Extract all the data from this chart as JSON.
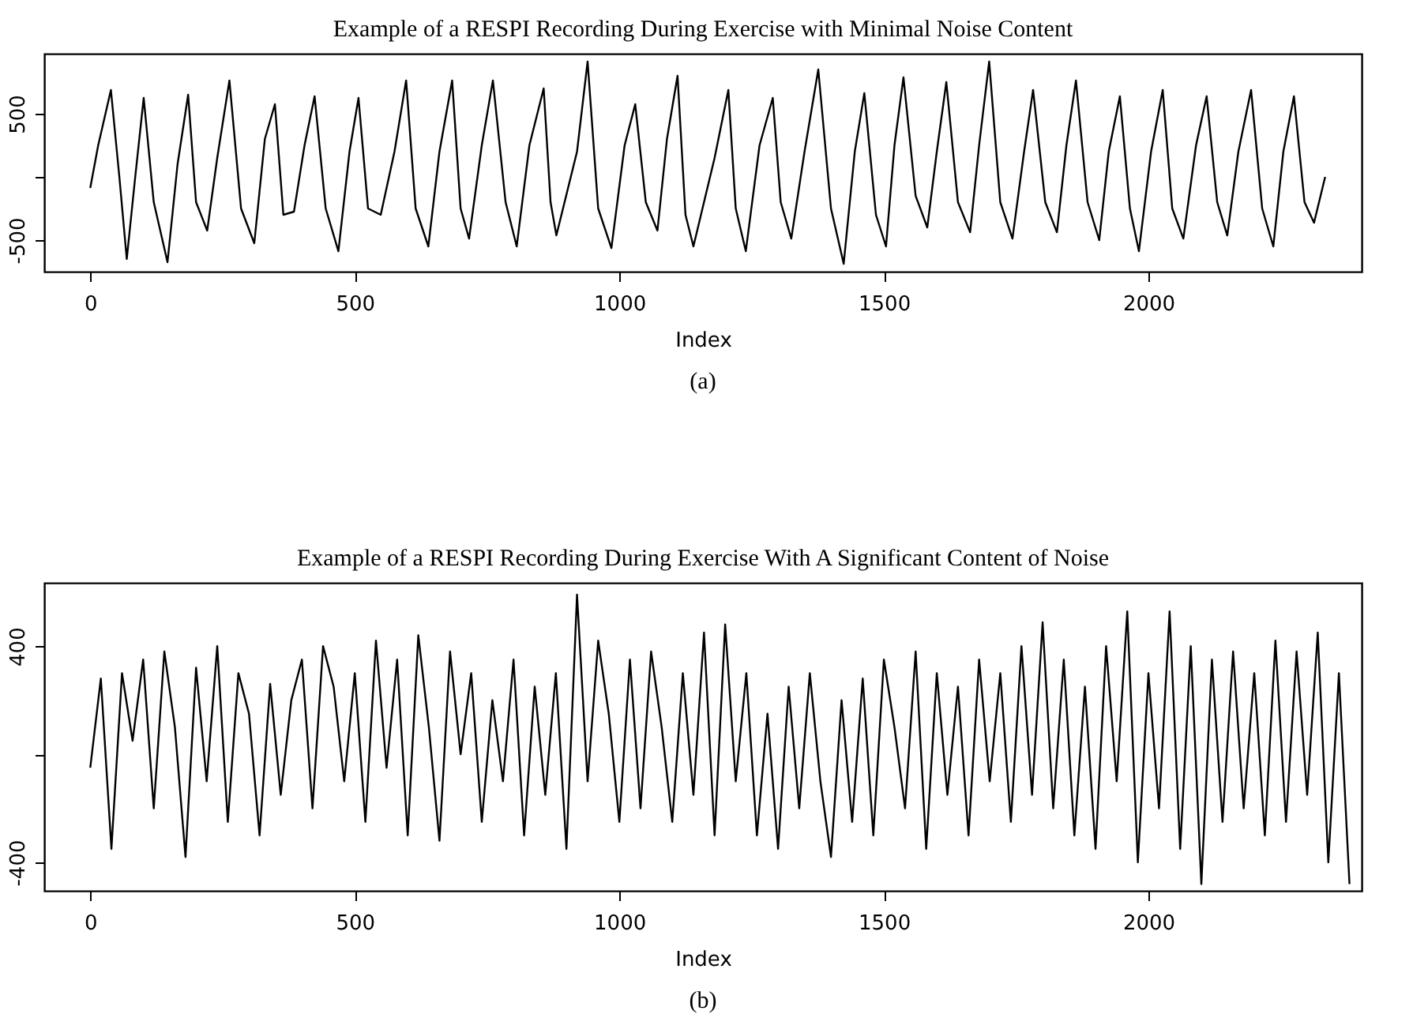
{
  "chart_data": [
    {
      "type": "line",
      "title": "Example of a RESPI Recording During Exercise with Minimal Noise Content",
      "xlabel": "Index",
      "annotations": [
        "(a)"
      ],
      "x": [
        0,
        15,
        39,
        55,
        69,
        85,
        101,
        120,
        146,
        165,
        185,
        200,
        221,
        240,
        263,
        285,
        310,
        330,
        349,
        365,
        385,
        405,
        424,
        445,
        469,
        490,
        507,
        525,
        549,
        575,
        597,
        615,
        639,
        660,
        684,
        700,
        716,
        740,
        761,
        785,
        806,
        830,
        857,
        870,
        881,
        920,
        940,
        960,
        985,
        1010,
        1030,
        1050,
        1072,
        1090,
        1110,
        1125,
        1140,
        1180,
        1206,
        1220,
        1239,
        1265,
        1290,
        1305,
        1325,
        1350,
        1376,
        1400,
        1424,
        1445,
        1463,
        1485,
        1504,
        1520,
        1537,
        1560,
        1582,
        1600,
        1618,
        1640,
        1663,
        1680,
        1699,
        1720,
        1743,
        1765,
        1782,
        1805,
        1827,
        1845,
        1863,
        1885,
        1907,
        1925,
        1946,
        1965,
        1982,
        2005,
        2027,
        2045,
        2066,
        2090,
        2110,
        2130,
        2149,
        2170,
        2194,
        2215,
        2236,
        2255,
        2275,
        2295,
        2313,
        2334
      ],
      "series": [
        {
          "color": "#000000",
          "values": [
            -88,
            250,
            688,
            0,
            -650,
            0,
            625,
            -200,
            -675,
            100,
            650,
            -200,
            -425,
            150,
            763,
            -250,
            -525,
            300,
            575,
            -300,
            -275,
            250,
            638,
            -250,
            -588,
            200,
            625,
            -250,
            -300,
            200,
            763,
            -250,
            -550,
            200,
            763,
            -250,
            -488,
            250,
            763,
            -200,
            -550,
            250,
            700,
            -200,
            -463,
            200,
            913,
            -250,
            -563,
            250,
            575,
            -200,
            -425,
            300,
            800,
            -300,
            -550,
            150,
            688,
            -250,
            -588,
            250,
            625,
            -200,
            -488,
            200,
            850,
            -250,
            -688,
            200,
            663,
            -300,
            -550,
            250,
            788,
            -150,
            -400,
            200,
            750,
            -200,
            -438,
            250,
            913,
            -200,
            -488,
            200,
            688,
            -200,
            -438,
            250,
            763,
            -200,
            -500,
            200,
            638,
            -250,
            -588,
            200,
            688,
            -250,
            -488,
            250,
            638,
            -200,
            -463,
            200,
            688,
            -250,
            -550,
            200,
            638,
            -200,
            -363,
            0
          ]
        }
      ],
      "xlim": [
        -87,
        2403
      ],
      "xticks": [
        0,
        500,
        1000,
        1500,
        2000
      ],
      "ylim": [
        -750,
        975
      ],
      "yticks": [
        -500,
        {
          "value": 0,
          "label": null
        },
        500
      ]
    },
    {
      "type": "line",
      "title": "Example of a RESPI Recording During Exercise With A Significant Content of Noise",
      "xlabel": "Index",
      "annotations": [
        "(b)"
      ],
      "x": [
        0,
        20,
        40,
        60,
        80,
        100,
        120,
        140,
        160,
        180,
        200,
        220,
        240,
        260,
        280,
        300,
        320,
        340,
        360,
        380,
        400,
        420,
        440,
        460,
        480,
        500,
        520,
        540,
        560,
        580,
        600,
        620,
        640,
        660,
        680,
        700,
        720,
        740,
        760,
        780,
        800,
        820,
        840,
        860,
        880,
        900,
        920,
        940,
        960,
        980,
        1000,
        1020,
        1040,
        1060,
        1080,
        1100,
        1120,
        1140,
        1160,
        1180,
        1200,
        1220,
        1240,
        1260,
        1280,
        1300,
        1320,
        1340,
        1360,
        1380,
        1400,
        1420,
        1440,
        1460,
        1480,
        1500,
        1520,
        1540,
        1560,
        1580,
        1600,
        1620,
        1640,
        1660,
        1680,
        1700,
        1720,
        1740,
        1760,
        1780,
        1800,
        1820,
        1840,
        1860,
        1880,
        1900,
        1920,
        1940,
        1960,
        1980,
        2000,
        2020,
        2040,
        2060,
        2080,
        2100,
        2120,
        2140,
        2160,
        2180,
        2200,
        2220,
        2240,
        2260,
        2280,
        2300,
        2320,
        2340,
        2360,
        2380
      ],
      "series": [
        {
          "color": "#000000",
          "values": [
            -50,
            280,
            -350,
            300,
            50,
            350,
            -200,
            380,
            100,
            -380,
            320,
            -100,
            400,
            -250,
            300,
            150,
            -300,
            260,
            -150,
            200,
            350,
            -200,
            400,
            250,
            -100,
            300,
            -250,
            420,
            -50,
            350,
            -300,
            440,
            100,
            -320,
            380,
            0,
            300,
            -250,
            200,
            -100,
            350,
            -300,
            250,
            -150,
            300,
            -350,
            590,
            -100,
            420,
            150,
            -250,
            350,
            -200,
            380,
            100,
            -250,
            300,
            -150,
            450,
            -300,
            480,
            -100,
            300,
            -300,
            150,
            -350,
            250,
            -200,
            300,
            -100,
            -380,
            200,
            -250,
            280,
            -300,
            350,
            100,
            -200,
            380,
            -350,
            300,
            -150,
            250,
            -300,
            350,
            -100,
            300,
            -250,
            400,
            -150,
            488,
            -200,
            350,
            -300,
            250,
            -350,
            400,
            -100,
            528,
            -400,
            300,
            -200,
            528,
            -350,
            400,
            -480,
            350,
            -250,
            380,
            -200,
            300,
            -300,
            420,
            -250,
            380,
            -150,
            450,
            -400,
            300,
            -480
          ]
        }
      ],
      "xlim": [
        -87,
        2403
      ],
      "xticks": [
        0,
        500,
        1000,
        1500,
        2000
      ],
      "ylim": [
        -505,
        634
      ],
      "yticks": [
        -400,
        {
          "value": 0,
          "label": null
        },
        400
      ]
    }
  ]
}
